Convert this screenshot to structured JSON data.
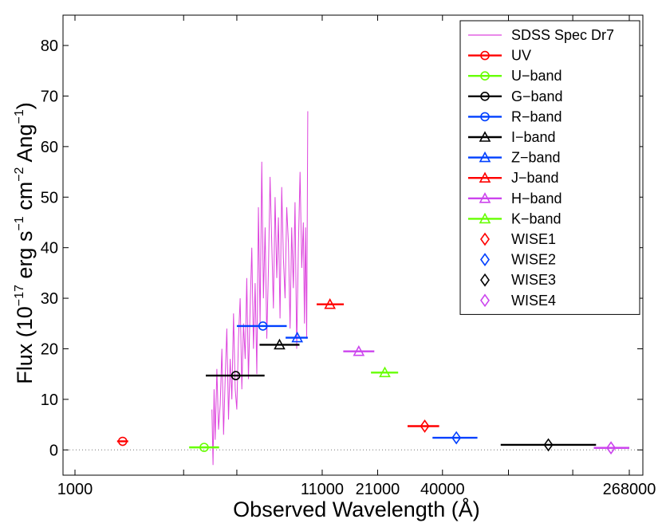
{
  "chart_data": {
    "type": "scatter",
    "title": "",
    "xlabel": "Observed Wavelength (Å)",
    "ylabel_main": "Flux (10",
    "ylabel_exp1": "−17",
    "ylabel_mid1": " erg s",
    "ylabel_exp2": "−1",
    "ylabel_mid2": " cm",
    "ylabel_exp3": "−2",
    "ylabel_mid3": " Ang",
    "ylabel_exp4": "−1",
    "ylabel_end": ")",
    "xlim": [
      0,
      1
    ],
    "ylim": [
      -5,
      86
    ],
    "x_scale_note": "piecewise; tick labels as printed",
    "xticks": [
      {
        "pos": 0.0,
        "label": "1000"
      },
      {
        "pos": 0.446,
        "label": "11000"
      },
      {
        "pos": 0.546,
        "label": "21000"
      },
      {
        "pos": 0.663,
        "label": "40000"
      },
      {
        "pos": 1.0,
        "label": "268000"
      }
    ],
    "xticks_unlabeled": [
      0.196,
      0.292,
      0.782,
      0.898
    ],
    "yticks": [
      0,
      10,
      20,
      30,
      40,
      50,
      60,
      70,
      80
    ],
    "zero_line": true,
    "series": [
      {
        "name": "UV",
        "color": "#ff0000",
        "marker": "circle",
        "x": 0.086,
        "xerr": [
          0.076,
          0.096
        ],
        "y": 1.7
      },
      {
        "name": "U-band",
        "color": "#66ff00",
        "marker": "circle",
        "x": 0.233,
        "xerr": [
          0.206,
          0.26
        ],
        "y": 0.5
      },
      {
        "name": "G-band",
        "color": "#000000",
        "marker": "circle",
        "x": 0.29,
        "xerr": [
          0.236,
          0.342
        ],
        "y": 14.7
      },
      {
        "name": "R-band",
        "color": "#0040ff",
        "marker": "circle",
        "x": 0.339,
        "xerr": [
          0.292,
          0.382
        ],
        "y": 24.5
      },
      {
        "name": "I-band",
        "color": "#000000",
        "marker": "triangle",
        "x": 0.369,
        "xerr": [
          0.333,
          0.405
        ],
        "y": 20.8
      },
      {
        "name": "Z-band",
        "color": "#0040ff",
        "marker": "triangle",
        "x": 0.401,
        "xerr": [
          0.38,
          0.42
        ],
        "y": 22.2
      },
      {
        "name": "J-band",
        "color": "#ff0000",
        "marker": "triangle",
        "x": 0.46,
        "xerr": [
          0.436,
          0.485
        ],
        "y": 28.8
      },
      {
        "name": "H-band",
        "color": "#cc44ee",
        "marker": "triangle",
        "x": 0.512,
        "xerr": [
          0.484,
          0.54
        ],
        "y": 19.5
      },
      {
        "name": "K-band",
        "color": "#66ff00",
        "marker": "triangle",
        "x": 0.559,
        "xerr": [
          0.534,
          0.583
        ],
        "y": 15.3
      },
      {
        "name": "WISE1",
        "color": "#ff0000",
        "marker": "diamond",
        "x": 0.631,
        "xerr": [
          0.6,
          0.657
        ],
        "y": 4.7
      },
      {
        "name": "WISE2",
        "color": "#0040ff",
        "marker": "diamond",
        "x": 0.688,
        "xerr": [
          0.645,
          0.726
        ],
        "y": 2.4
      },
      {
        "name": "WISE3",
        "color": "#000000",
        "marker": "diamond",
        "x": 0.854,
        "xerr": [
          0.768,
          0.94
        ],
        "y": 1.0
      },
      {
        "name": "WISE4",
        "color": "#cc44ee",
        "marker": "diamond",
        "x": 0.967,
        "xerr": [
          0.936,
          1.0
        ],
        "y": 0.4
      }
    ],
    "spectrum": {
      "name": "SDSS Spec Dr7",
      "color": "#dd44dd",
      "x": [
        0.247,
        0.249,
        0.251,
        0.253,
        0.256,
        0.259,
        0.262,
        0.265,
        0.268,
        0.271,
        0.274,
        0.277,
        0.28,
        0.283,
        0.286,
        0.289,
        0.292,
        0.295,
        0.298,
        0.301,
        0.304,
        0.307,
        0.31,
        0.313,
        0.316,
        0.319,
        0.322,
        0.325,
        0.328,
        0.331,
        0.334,
        0.337,
        0.34,
        0.343,
        0.346,
        0.349,
        0.352,
        0.355,
        0.358,
        0.361,
        0.364,
        0.367,
        0.37,
        0.373,
        0.376,
        0.379,
        0.382,
        0.385,
        0.388,
        0.391,
        0.394,
        0.397,
        0.4,
        0.403,
        0.406,
        0.409,
        0.412,
        0.414,
        0.416,
        0.418,
        0.42
      ],
      "y": [
        8,
        -3,
        12,
        2,
        16,
        4,
        9,
        20,
        3,
        14,
        24,
        6,
        18,
        10,
        27,
        12,
        8,
        22,
        30,
        12,
        25,
        18,
        34,
        14,
        28,
        40,
        20,
        33,
        15,
        48,
        25,
        57,
        30,
        44,
        22,
        36,
        54,
        41,
        28,
        50,
        34,
        46,
        26,
        52,
        38,
        30,
        48,
        41,
        24,
        44,
        32,
        49,
        20,
        40,
        55,
        36,
        45,
        25,
        44,
        22,
        67
      ]
    }
  },
  "legend": {
    "placement": "top-right",
    "entries": [
      {
        "label": "SDSS Spec Dr7",
        "color": "#dd44dd",
        "marker": "none"
      },
      {
        "label": "UV",
        "color": "#ff0000",
        "marker": "circle"
      },
      {
        "label": "U−band",
        "color": "#66ff00",
        "marker": "circle"
      },
      {
        "label": "G−band",
        "color": "#000000",
        "marker": "circle"
      },
      {
        "label": "R−band",
        "color": "#0040ff",
        "marker": "circle"
      },
      {
        "label": "I−band",
        "color": "#000000",
        "marker": "triangle"
      },
      {
        "label": "Z−band",
        "color": "#0040ff",
        "marker": "triangle"
      },
      {
        "label": "J−band",
        "color": "#ff0000",
        "marker": "triangle"
      },
      {
        "label": "H−band",
        "color": "#cc44ee",
        "marker": "triangle"
      },
      {
        "label": "K−band",
        "color": "#66ff00",
        "marker": "triangle"
      },
      {
        "label": "WISE1",
        "color": "#ff0000",
        "marker": "diamond"
      },
      {
        "label": "WISE2",
        "color": "#0040ff",
        "marker": "diamond"
      },
      {
        "label": "WISE3",
        "color": "#000000",
        "marker": "diamond"
      },
      {
        "label": "WISE4",
        "color": "#cc44ee",
        "marker": "diamond"
      }
    ]
  }
}
